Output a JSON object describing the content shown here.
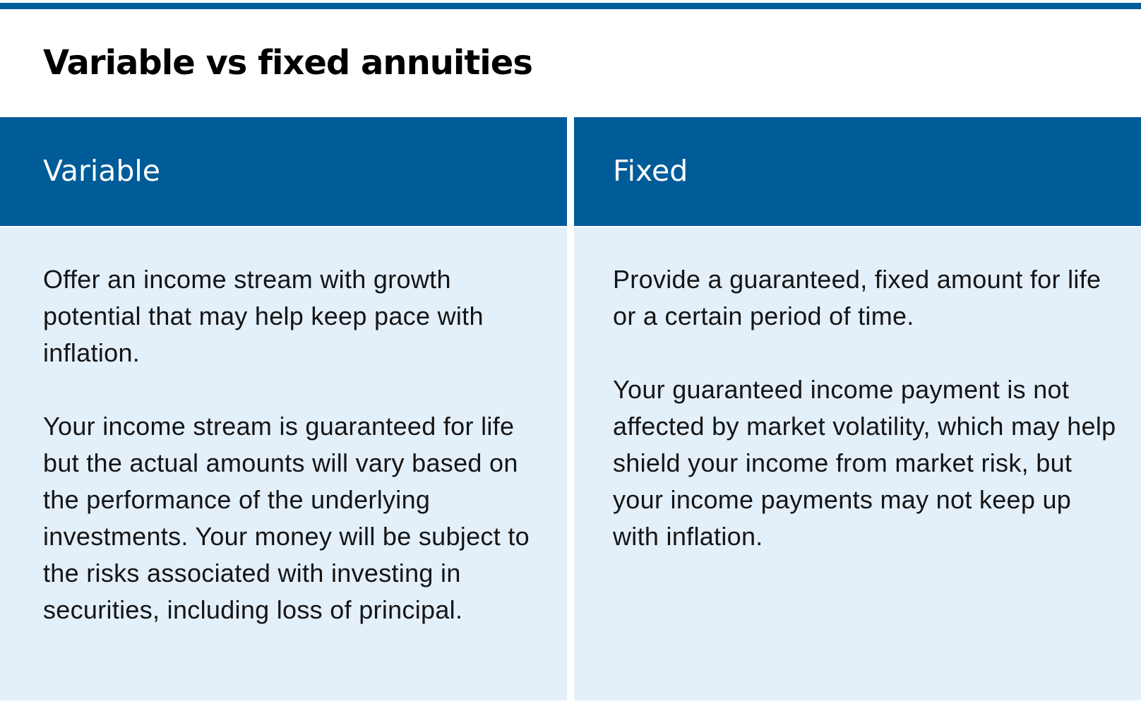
{
  "title": "Variable vs fixed annuities",
  "columns": [
    {
      "header": "Variable",
      "paragraphs": [
        "Offer an income stream with growth potential that may help keep pace with inflation.",
        "Your income stream is guaranteed for life but the actual amounts will vary based on the performance of the underlying investments. Your money will be subject to the risks associated with investing in securities, including loss of principal."
      ]
    },
    {
      "header": "Fixed",
      "paragraphs": [
        "Provide a guaranteed, fixed amount for life or a certain period of time.",
        "Your guaranteed income payment is not affected by market volatility, which may help shield your income from market risk, but your income payments may not keep up with inflation."
      ]
    }
  ],
  "colors": {
    "accent": "#005b99",
    "cell_background": "#e3eff9",
    "title_text": "#000000",
    "header_text": "#ffffff"
  }
}
